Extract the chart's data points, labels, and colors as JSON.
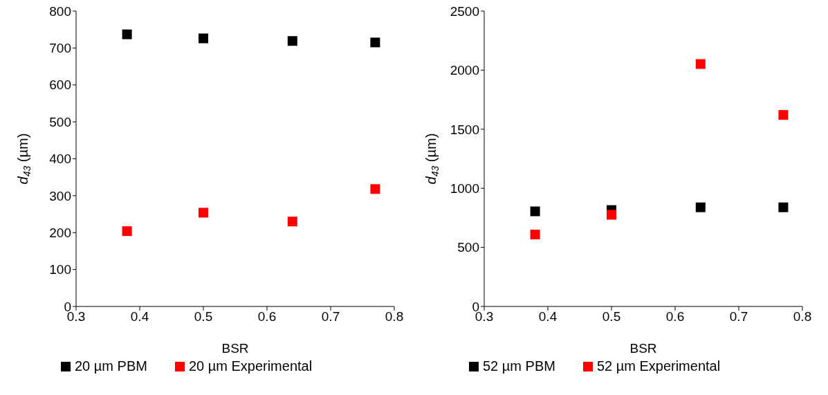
{
  "chart_data": [
    {
      "type": "scatter",
      "xlabel": "BSR",
      "ylabel": "d$_{43}$ (µm)",
      "x": [
        0.38,
        0.5,
        0.64,
        0.77
      ],
      "xlim": [
        0.3,
        0.8
      ],
      "xticks": [
        0.3,
        0.4,
        0.5,
        0.6,
        0.7,
        0.8
      ],
      "ylim": [
        0,
        800
      ],
      "yticks": [
        0,
        100,
        200,
        300,
        400,
        500,
        600,
        700,
        800
      ],
      "marker": "square",
      "grid": false,
      "legend": "bottom",
      "series": [
        {
          "name": "20 µm PBM",
          "color": "#000000",
          "values": [
            737,
            726,
            719,
            715
          ]
        },
        {
          "name": "20 µm Experimental",
          "color": "#ff0000",
          "values": [
            204,
            254,
            230,
            318
          ]
        }
      ]
    },
    {
      "type": "scatter",
      "xlabel": "BSR",
      "ylabel": "d$_{43}$ (µm)",
      "x": [
        0.38,
        0.5,
        0.64,
        0.77
      ],
      "xlim": [
        0.3,
        0.8
      ],
      "xticks": [
        0.3,
        0.4,
        0.5,
        0.6,
        0.7,
        0.8
      ],
      "ylim": [
        0,
        2500
      ],
      "yticks": [
        0,
        500,
        1000,
        1500,
        2000,
        2500
      ],
      "marker": "square",
      "grid": false,
      "legend": "bottom",
      "series": [
        {
          "name": "52 µm PBM",
          "color": "#000000",
          "values": [
            805,
            816,
            839,
            839
          ]
        },
        {
          "name": "52 µm Experimental",
          "color": "#ff0000",
          "values": [
            609,
            776,
            2052,
            1621
          ]
        }
      ]
    }
  ]
}
